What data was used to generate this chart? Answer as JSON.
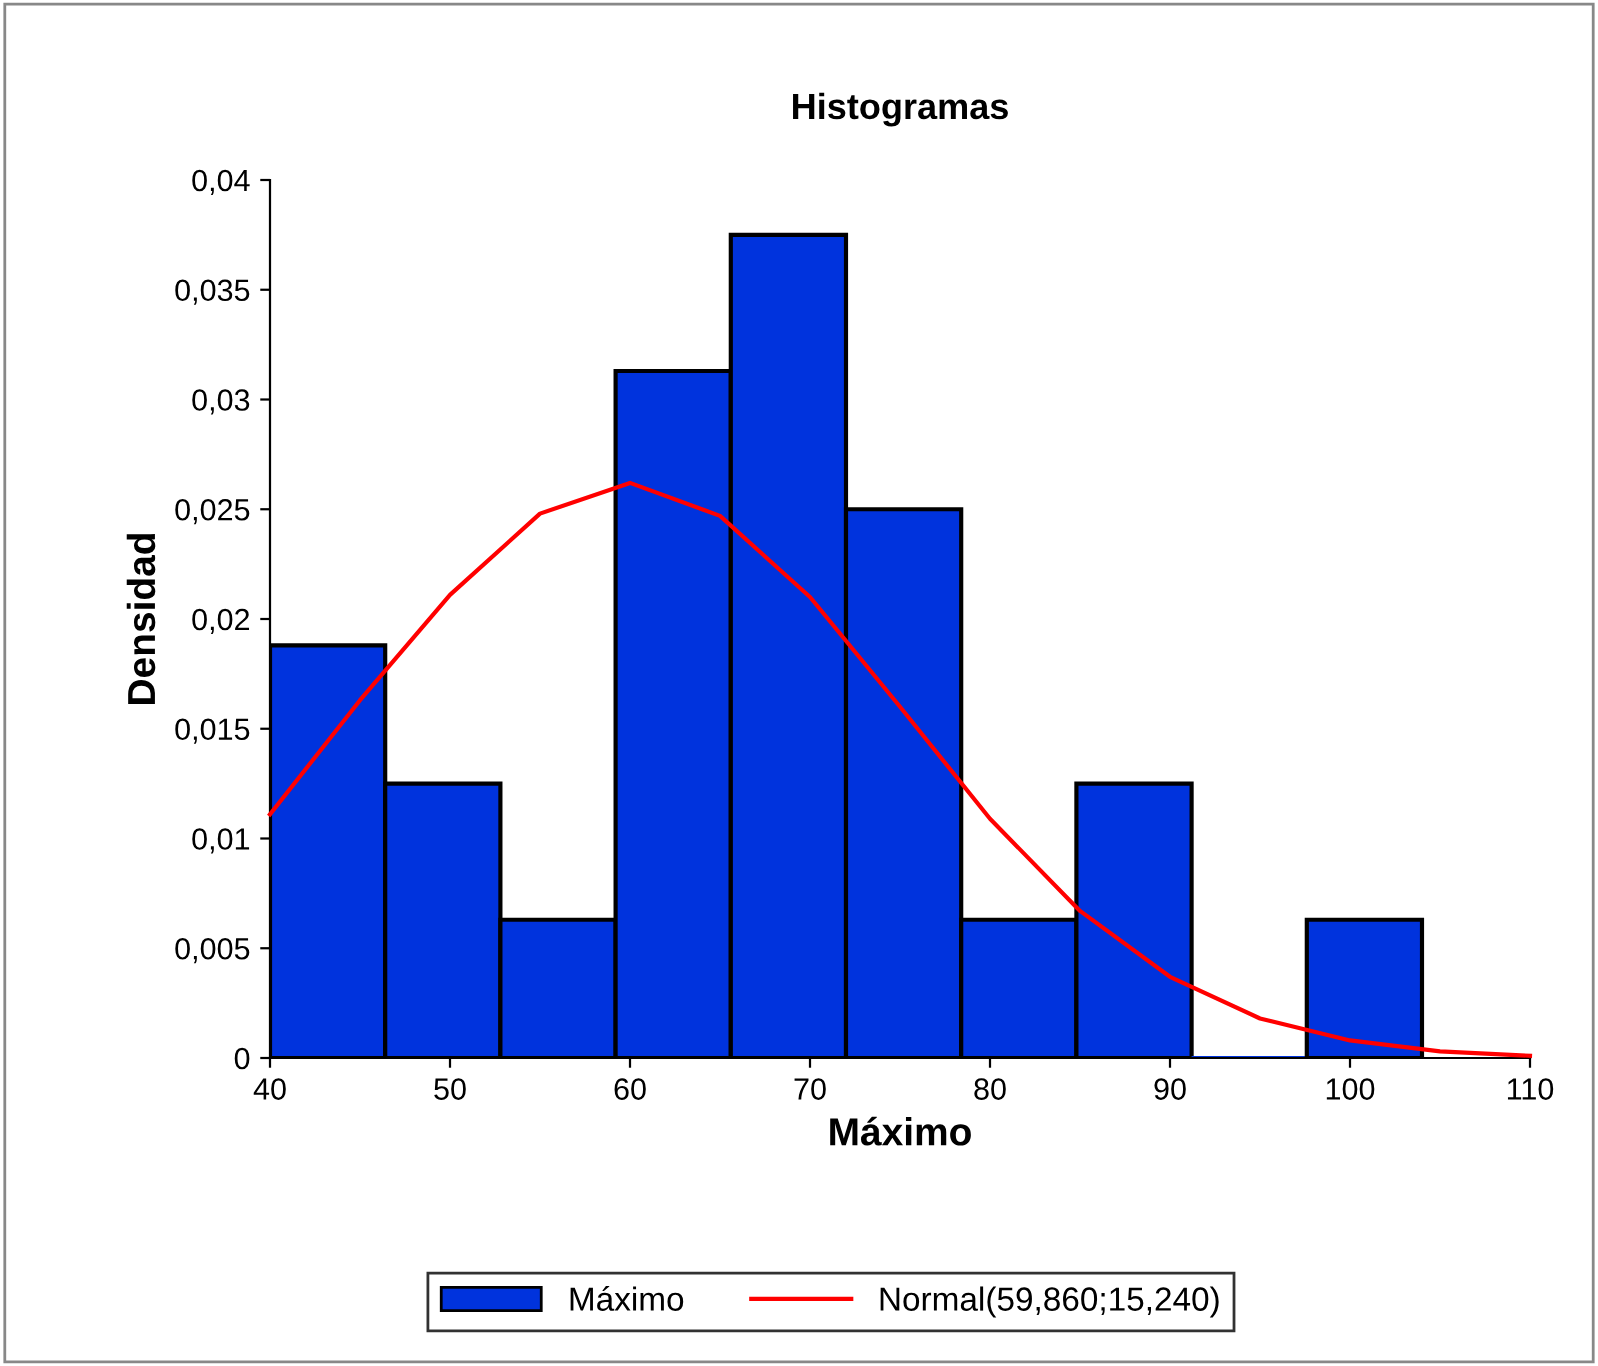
{
  "chart_data": {
    "type": "histogram",
    "title": "Histogramas",
    "xlabel": "Máximo",
    "ylabel": "Densidad",
    "bins": [
      40,
      46.4,
      52.8,
      59.2,
      65.6,
      72,
      78.4,
      84.8,
      91.2,
      97.6,
      104
    ],
    "series": [
      {
        "name": "Máximo",
        "color": "#0033dd",
        "values": [
          0.0188,
          0.0125,
          0.0063,
          0.0313,
          0.0375,
          0.025,
          0.0063,
          0.0125,
          0,
          0.0063
        ]
      },
      {
        "name": "Normal(59,860;15,240)",
        "type": "line",
        "color": "#ff0000",
        "x": [
          40,
          45,
          50,
          55,
          60,
          65,
          70,
          75,
          80,
          85,
          90,
          95,
          100,
          105,
          110
        ],
        "values": [
          0.0111,
          0.0163,
          0.0211,
          0.0248,
          0.0262,
          0.0247,
          0.021,
          0.016,
          0.0109,
          0.0067,
          0.0037,
          0.0018,
          0.0008,
          0.0003,
          0.0001
        ]
      }
    ],
    "xlim": [
      40,
      110
    ],
    "xticks": [
      40,
      50,
      60,
      70,
      80,
      90,
      100,
      110
    ],
    "ylim": [
      0,
      0.04
    ],
    "yticks": [
      0,
      {
        "value": 0.005,
        "label": "0,005"
      },
      {
        "value": 0.01,
        "label": "0,01"
      },
      {
        "value": 0.015,
        "label": "0,015"
      },
      {
        "value": 0.02,
        "label": "0,02"
      },
      {
        "value": 0.025,
        "label": "0,025"
      },
      {
        "value": 0.03,
        "label": "0,03"
      },
      {
        "value": 0.035,
        "label": "0,035"
      },
      {
        "value": 0.04,
        "label": "0,04"
      }
    ],
    "grid": false,
    "legend": "bottom"
  }
}
